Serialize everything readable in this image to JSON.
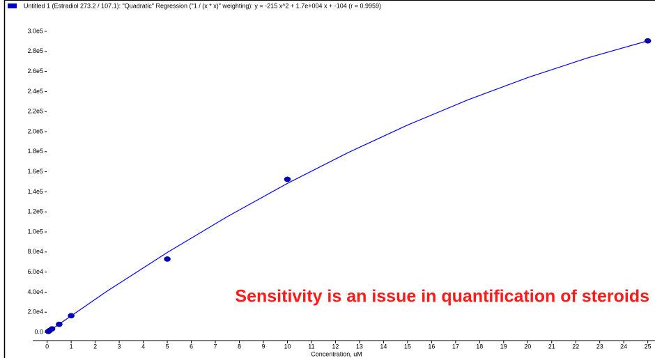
{
  "chart_data": {
    "type": "scatter",
    "title": "Untitled 1 (Estradiol 273.2 / 107.1): \"Quadratic\" Regression (\"1  / (x * x)\" weighting): y = -215 x^2 + 1.7e+004 x + -104 (r = 0.9959)",
    "annotation": "Sensitivity is an issue in quantification of steroids",
    "annotation_color": "#ff1a1a",
    "x_label": "Concentration, uM",
    "legend_color": "#0000cc",
    "xlim": [
      -0.6,
      25.3
    ],
    "ylim": [
      -8300,
      310400
    ],
    "xticks": [
      0,
      1,
      2,
      3,
      4,
      5,
      6,
      7,
      8,
      9,
      10,
      11,
      12,
      13,
      14,
      15,
      16,
      17,
      18,
      19,
      20,
      21,
      22,
      23,
      24,
      25
    ],
    "yticks": [
      {
        "value": 0,
        "label": "0.0"
      },
      {
        "value": 20000,
        "label": "2.0e4"
      },
      {
        "value": 40000,
        "label": "4.0e4"
      },
      {
        "value": 60000,
        "label": "6.0e4"
      },
      {
        "value": 80000,
        "label": "8.0e4"
      },
      {
        "value": 100000,
        "label": "1.0e5"
      },
      {
        "value": 120000,
        "label": "1.2e5"
      },
      {
        "value": 140000,
        "label": "1.4e5"
      },
      {
        "value": 160000,
        "label": "1.6e5"
      },
      {
        "value": 180000,
        "label": "1.8e5"
      },
      {
        "value": 200000,
        "label": "2.0e5"
      },
      {
        "value": 220000,
        "label": "2.2e5"
      },
      {
        "value": 240000,
        "label": "2.4e5"
      },
      {
        "value": 260000,
        "label": "2.6e5"
      },
      {
        "value": 280000,
        "label": "2.8e5"
      },
      {
        "value": 300000,
        "label": "3.0e5"
      }
    ],
    "series": [
      {
        "type": "line",
        "color": "#0000ff",
        "x": [
          0,
          2.5,
          5,
          7.5,
          10,
          12.5,
          15,
          17.5,
          20,
          22.5,
          25
        ],
        "values": [
          -104,
          41052,
          79521,
          115302,
          148396,
          178802,
          206521,
          231552,
          253896,
          273552,
          290521
        ]
      },
      {
        "type": "scatter",
        "color": "#0000c8",
        "x": [
          0.05,
          0.1,
          0.2,
          0.5,
          1,
          5,
          10,
          25
        ],
        "values": [
          800,
          1700,
          3400,
          8000,
          16500,
          73000,
          152500,
          290500
        ]
      }
    ]
  }
}
